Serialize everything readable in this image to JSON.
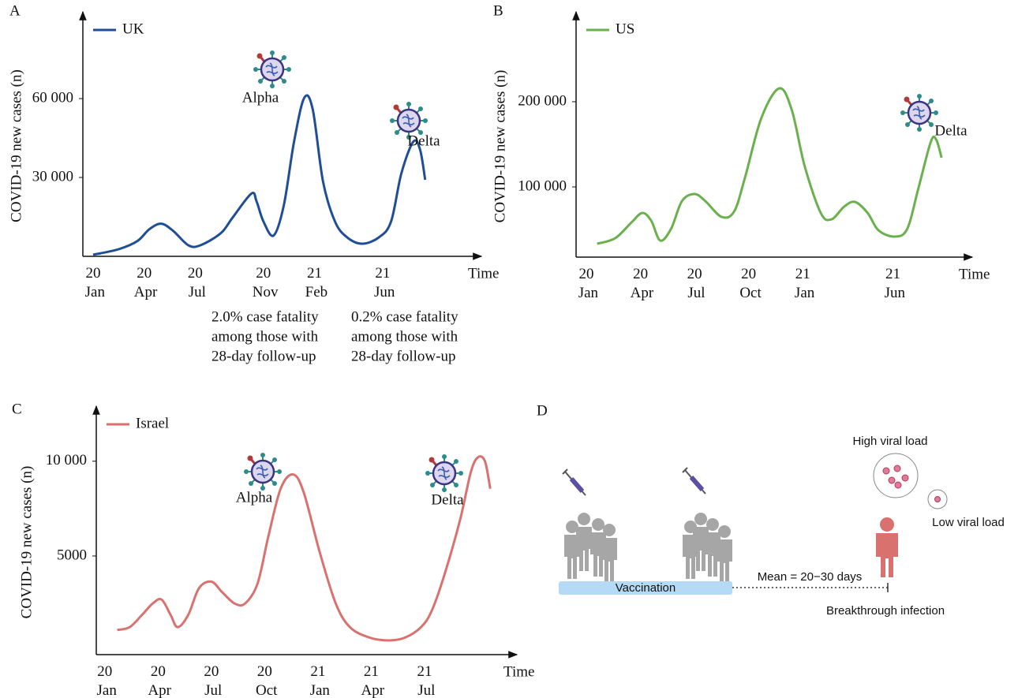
{
  "chart_data": [
    {
      "panel": "A",
      "type": "line",
      "ylabel": "COVID-19 new cases (n)",
      "xlabel": "Time",
      "xlim": [
        -0.6,
        22.8
      ],
      "xticks": [
        {
          "value": 0,
          "label": "20 Jan"
        },
        {
          "value": 3,
          "label": "20 Apr"
        },
        {
          "value": 6,
          "label": "20 Jul"
        },
        {
          "value": 10,
          "label": "20 Nov"
        },
        {
          "value": 13,
          "label": "21 Feb"
        },
        {
          "value": 17,
          "label": "21 Jun"
        }
      ],
      "ylim": [
        0,
        93000
      ],
      "yticks": [
        {
          "value": 30000,
          "label": "30 000"
        },
        {
          "value": 60000,
          "label": "60 000"
        }
      ],
      "x": [
        0,
        1.5,
        2.6,
        3.3,
        4.0,
        4.7,
        5.6,
        6.3,
        7.5,
        8.2,
        9.3,
        9.6,
        10.0,
        10.6,
        11.2,
        11.8,
        12.4,
        12.9,
        13.5,
        14.2,
        14.9,
        15.8,
        16.8,
        17.5,
        18.1,
        18.8,
        19.2,
        19.5
      ],
      "series": [
        {
          "name": "UK",
          "color": "#1f4e96",
          "values": [
            600,
            2700,
            5800,
            10300,
            12400,
            9700,
            4200,
            4200,
            8800,
            14800,
            23900,
            20900,
            13300,
            7900,
            19400,
            43600,
            60300,
            55800,
            28500,
            13300,
            7300,
            4800,
            7300,
            13300,
            31500,
            43600,
            40600,
            29100
          ]
        }
      ],
      "annotations": [
        "Alpha",
        "Delta"
      ],
      "notes": [
        [
          "2.0% case fatality",
          "among those with",
          "28-day follow-up"
        ],
        [
          "0.2% case fatality",
          "among those with",
          "28-day follow-up"
        ]
      ]
    },
    {
      "panel": "B",
      "type": "line",
      "ylabel": "COVID-19 new cases (n)",
      "xlabel": "Time",
      "xlim": [
        -0.57,
        21.4
      ],
      "xticks": [
        {
          "value": 0,
          "label": "20 Jan"
        },
        {
          "value": 3,
          "label": "20 Apr"
        },
        {
          "value": 6,
          "label": "20 Jul"
        },
        {
          "value": 9,
          "label": "20 Oct"
        },
        {
          "value": 12,
          "label": "21 Jan"
        },
        {
          "value": 17,
          "label": "21 Jun"
        }
      ],
      "ylim": [
        17600,
        305500
      ],
      "yticks": [
        {
          "value": 100000,
          "label": "100 000"
        },
        {
          "value": 200000,
          "label": "200 000"
        }
      ],
      "x": [
        0.6,
        1.6,
        2.5,
        3.1,
        3.6,
        4.1,
        4.7,
        5.3,
        6.0,
        6.6,
        7.5,
        8.2,
        8.8,
        9.7,
        10.7,
        11.4,
        12.1,
        13.0,
        13.6,
        14.3,
        14.9,
        15.6,
        16.2,
        17.1,
        17.8,
        18.4,
        19.1,
        19.4,
        19.7
      ],
      "series": [
        {
          "name": "US",
          "color": "#6ab04c",
          "values": [
            33300,
            39800,
            58300,
            69400,
            60200,
            37000,
            50900,
            83300,
            91700,
            83300,
            64800,
            71300,
            111100,
            180600,
            215700,
            189800,
            125000,
            69400,
            62000,
            76900,
            82400,
            69400,
            49100,
            41700,
            50900,
            97200,
            152800,
            155600,
            134300
          ]
        }
      ],
      "annotations": [
        "Delta"
      ]
    },
    {
      "panel": "C",
      "type": "line",
      "ylabel": "COVID-19 new cases (n)",
      "xlabel": "Time",
      "xlim": [
        -0.48,
        23.2
      ],
      "xticks": [
        {
          "value": 0,
          "label": "20 Jan"
        },
        {
          "value": 3,
          "label": "20 Apr"
        },
        {
          "value": 6,
          "label": "20 Jul"
        },
        {
          "value": 9,
          "label": "20 Oct"
        },
        {
          "value": 12,
          "label": "21 Jan"
        },
        {
          "value": 15,
          "label": "21 Apr"
        },
        {
          "value": 18,
          "label": "21 Jul"
        }
      ],
      "ylim": [
        -200,
        12900
      ],
      "yticks": [
        5000,
        {
          "value": 10000,
          "label": "10 000"
        }
      ],
      "x": [
        0.7,
        1.4,
        2.1,
        2.7,
        3.2,
        3.7,
        4.1,
        4.7,
        5.3,
        6.0,
        6.6,
        7.3,
        7.9,
        8.6,
        9.2,
        9.9,
        10.6,
        11.2,
        12.1,
        13.0,
        13.8,
        14.9,
        16.0,
        16.9,
        17.8,
        18.4,
        19.1,
        20.0,
        20.6,
        21.0,
        21.4,
        21.7
      ],
      "series": [
        {
          "name": "Israel",
          "color": "#d9726f",
          "values": [
            1100,
            1250,
            1900,
            2500,
            2700,
            1900,
            1250,
            1900,
            3300,
            3650,
            3100,
            2500,
            2500,
            3550,
            6000,
            8550,
            9300,
            8350,
            5200,
            2500,
            1250,
            700,
            550,
            700,
            1250,
            2100,
            3950,
            6900,
            9400,
            10200,
            10000,
            8550
          ]
        }
      ],
      "annotations": [
        "Alpha",
        "Delta"
      ]
    }
  ],
  "diagram": {
    "panel": "D",
    "high_viral_load": "High viral load",
    "low_viral_load": "Low viral load",
    "interval": "Mean = 20−30 days",
    "bar": "Vaccination",
    "outcome": "Breakthrough infection"
  }
}
